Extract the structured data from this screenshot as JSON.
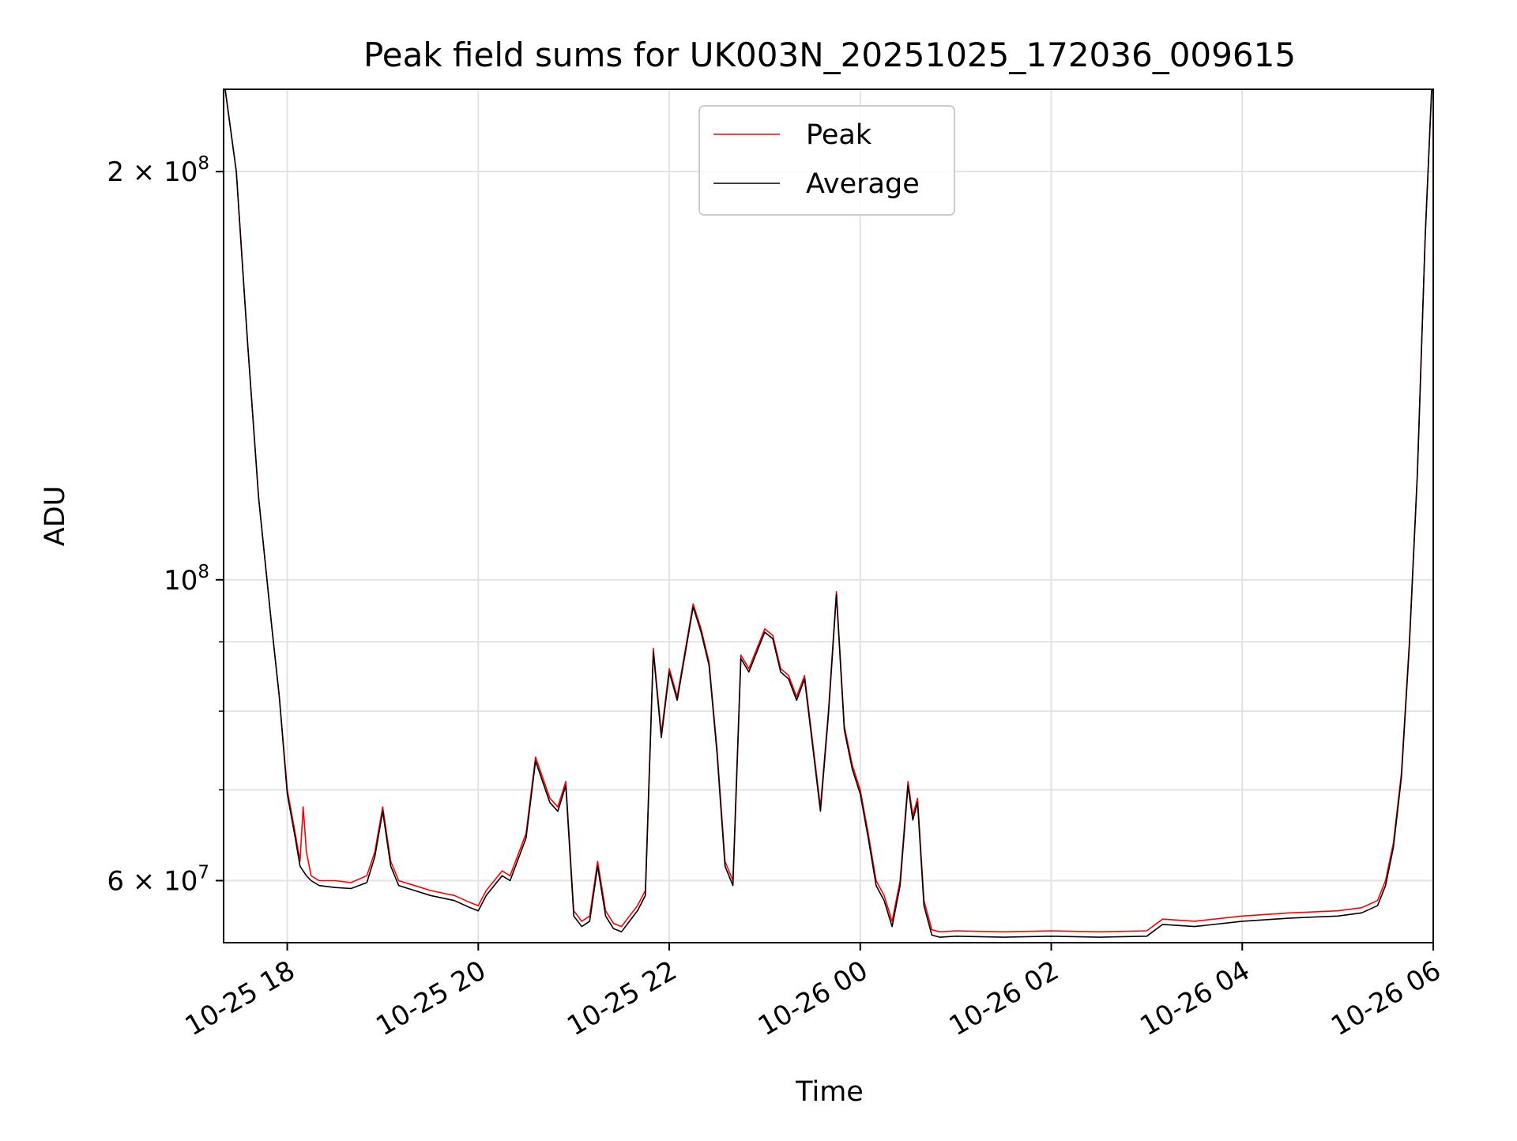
{
  "chart_data": {
    "type": "line",
    "title": "Peak field sums for UK003N_20251025_172036_009615",
    "xlabel": "Time",
    "ylabel": "ADU",
    "yscale": "log",
    "xlim": [
      "2025-10-25 17:20",
      "2025-10-26 06:00"
    ],
    "ylim": [
      54000000,
      230000000
    ],
    "x_ticks": [
      {
        "value": "2025-10-25 18:00",
        "label": "10-25 18"
      },
      {
        "value": "2025-10-25 20:00",
        "label": "10-25 20"
      },
      {
        "value": "2025-10-25 22:00",
        "label": "10-25 22"
      },
      {
        "value": "2025-10-26 00:00",
        "label": "10-26 00"
      },
      {
        "value": "2025-10-26 02:00",
        "label": "10-26 02"
      },
      {
        "value": "2025-10-26 04:00",
        "label": "10-26 04"
      },
      {
        "value": "2025-10-26 06:00",
        "label": "10-26 06"
      }
    ],
    "y_major_ticks": [
      {
        "value": 200000000,
        "base": "2 × 10",
        "exp": "8"
      },
      {
        "value": 100000000,
        "base": "10",
        "exp": "8"
      },
      {
        "value": 60000000,
        "base": "6 × 10",
        "exp": "7"
      }
    ],
    "y_minor_ticks": [
      90000000,
      80000000,
      70000000
    ],
    "grid": true,
    "legend": {
      "placement": "top-center"
    },
    "series": [
      {
        "name": "Peak",
        "color": "#ff0000",
        "x": [
          "2025-10-25 17:21",
          "2025-10-25 17:28",
          "2025-10-25 17:35",
          "2025-10-25 17:42",
          "2025-10-25 17:50",
          "2025-10-25 17:55",
          "2025-10-25 18:00",
          "2025-10-25 18:05",
          "2025-10-25 18:08",
          "2025-10-25 18:10",
          "2025-10-25 18:12",
          "2025-10-25 18:15",
          "2025-10-25 18:20",
          "2025-10-25 18:30",
          "2025-10-25 18:40",
          "2025-10-25 18:50",
          "2025-10-25 18:55",
          "2025-10-25 19:00",
          "2025-10-25 19:05",
          "2025-10-25 19:10",
          "2025-10-25 19:20",
          "2025-10-25 19:30",
          "2025-10-25 19:45",
          "2025-10-25 19:55",
          "2025-10-25 20:00",
          "2025-10-25 20:05",
          "2025-10-25 20:15",
          "2025-10-25 20:20",
          "2025-10-25 20:30",
          "2025-10-25 20:36",
          "2025-10-25 20:45",
          "2025-10-25 20:50",
          "2025-10-25 20:55",
          "2025-10-25 21:00",
          "2025-10-25 21:05",
          "2025-10-25 21:10",
          "2025-10-25 21:15",
          "2025-10-25 21:20",
          "2025-10-25 21:25",
          "2025-10-25 21:30",
          "2025-10-25 21:35",
          "2025-10-25 21:40",
          "2025-10-25 21:45",
          "2025-10-25 21:50",
          "2025-10-25 21:55",
          "2025-10-25 22:00",
          "2025-10-25 22:05",
          "2025-10-25 22:15",
          "2025-10-25 22:20",
          "2025-10-25 22:25",
          "2025-10-25 22:30",
          "2025-10-25 22:35",
          "2025-10-25 22:40",
          "2025-10-25 22:45",
          "2025-10-25 22:50",
          "2025-10-25 23:00",
          "2025-10-25 23:05",
          "2025-10-25 23:10",
          "2025-10-25 23:15",
          "2025-10-25 23:20",
          "2025-10-25 23:25",
          "2025-10-25 23:30",
          "2025-10-25 23:35",
          "2025-10-25 23:40",
          "2025-10-25 23:45",
          "2025-10-25 23:50",
          "2025-10-25 23:55",
          "2025-10-26 00:00",
          "2025-10-26 00:05",
          "2025-10-26 00:10",
          "2025-10-26 00:15",
          "2025-10-26 00:20",
          "2025-10-26 00:25",
          "2025-10-26 00:30",
          "2025-10-26 00:33",
          "2025-10-26 00:36",
          "2025-10-26 00:40",
          "2025-10-26 00:45",
          "2025-10-26 00:50",
          "2025-10-26 01:00",
          "2025-10-26 01:30",
          "2025-10-26 02:00",
          "2025-10-26 02:30",
          "2025-10-26 03:00",
          "2025-10-26 03:10",
          "2025-10-26 03:30",
          "2025-10-26 04:00",
          "2025-10-26 04:30",
          "2025-10-26 05:00",
          "2025-10-26 05:15",
          "2025-10-26 05:25",
          "2025-10-26 05:30",
          "2025-10-26 05:35",
          "2025-10-26 05:40",
          "2025-10-26 05:45",
          "2025-10-26 05:50",
          "2025-10-26 05:55",
          "2025-10-26 05:59"
        ],
        "y": [
          230000000,
          200000000,
          150000000,
          115000000,
          93000000,
          82000000,
          70000000,
          65000000,
          62000000,
          68000000,
          63000000,
          60500000,
          60000000,
          60000000,
          59800000,
          60500000,
          63000000,
          68000000,
          62000000,
          60000000,
          59500000,
          59000000,
          58500000,
          57800000,
          57500000,
          59000000,
          61000000,
          60500000,
          65000000,
          74000000,
          69000000,
          68000000,
          71000000,
          57000000,
          56000000,
          56500000,
          62000000,
          57000000,
          55800000,
          55500000,
          56500000,
          57500000,
          59000000,
          89000000,
          77000000,
          86000000,
          82000000,
          96000000,
          92000000,
          87000000,
          75000000,
          62000000,
          60000000,
          88000000,
          86000000,
          92000000,
          91000000,
          86000000,
          85000000,
          82000000,
          85000000,
          76000000,
          68000000,
          80000000,
          98000000,
          78000000,
          73000000,
          70000000,
          65000000,
          60000000,
          58500000,
          56000000,
          60000000,
          71000000,
          67000000,
          69000000,
          58000000,
          55200000,
          55000000,
          55100000,
          55000000,
          55100000,
          55000000,
          55100000,
          56200000,
          56000000,
          56500000,
          56800000,
          57000000,
          57300000,
          58000000,
          60000000,
          64000000,
          72000000,
          90000000,
          120000000,
          180000000,
          230000000
        ]
      },
      {
        "name": "Average",
        "color": "#000000",
        "x": [
          "2025-10-25 17:21",
          "2025-10-25 17:28",
          "2025-10-25 17:35",
          "2025-10-25 17:42",
          "2025-10-25 17:50",
          "2025-10-25 17:55",
          "2025-10-25 18:00",
          "2025-10-25 18:05",
          "2025-10-25 18:08",
          "2025-10-25 18:10",
          "2025-10-25 18:12",
          "2025-10-25 18:15",
          "2025-10-25 18:20",
          "2025-10-25 18:30",
          "2025-10-25 18:40",
          "2025-10-25 18:50",
          "2025-10-25 18:55",
          "2025-10-25 19:00",
          "2025-10-25 19:05",
          "2025-10-25 19:10",
          "2025-10-25 19:20",
          "2025-10-25 19:30",
          "2025-10-25 19:45",
          "2025-10-25 19:55",
          "2025-10-25 20:00",
          "2025-10-25 20:05",
          "2025-10-25 20:15",
          "2025-10-25 20:20",
          "2025-10-25 20:30",
          "2025-10-25 20:36",
          "2025-10-25 20:45",
          "2025-10-25 20:50",
          "2025-10-25 20:55",
          "2025-10-25 21:00",
          "2025-10-25 21:05",
          "2025-10-25 21:10",
          "2025-10-25 21:15",
          "2025-10-25 21:20",
          "2025-10-25 21:25",
          "2025-10-25 21:30",
          "2025-10-25 21:35",
          "2025-10-25 21:40",
          "2025-10-25 21:45",
          "2025-10-25 21:50",
          "2025-10-25 21:55",
          "2025-10-25 22:00",
          "2025-10-25 22:05",
          "2025-10-25 22:15",
          "2025-10-25 22:20",
          "2025-10-25 22:25",
          "2025-10-25 22:30",
          "2025-10-25 22:35",
          "2025-10-25 22:40",
          "2025-10-25 22:45",
          "2025-10-25 22:50",
          "2025-10-25 23:00",
          "2025-10-25 23:05",
          "2025-10-25 23:10",
          "2025-10-25 23:15",
          "2025-10-25 23:20",
          "2025-10-25 23:25",
          "2025-10-25 23:30",
          "2025-10-25 23:35",
          "2025-10-25 23:40",
          "2025-10-25 23:45",
          "2025-10-25 23:50",
          "2025-10-25 23:55",
          "2025-10-26 00:00",
          "2025-10-26 00:05",
          "2025-10-26 00:10",
          "2025-10-26 00:15",
          "2025-10-26 00:20",
          "2025-10-26 00:25",
          "2025-10-26 00:30",
          "2025-10-26 00:33",
          "2025-10-26 00:36",
          "2025-10-26 00:40",
          "2025-10-26 00:45",
          "2025-10-26 00:50",
          "2025-10-26 01:00",
          "2025-10-26 01:30",
          "2025-10-26 02:00",
          "2025-10-26 02:30",
          "2025-10-26 03:00",
          "2025-10-26 03:10",
          "2025-10-26 03:30",
          "2025-10-26 04:00",
          "2025-10-26 04:30",
          "2025-10-26 05:00",
          "2025-10-26 05:15",
          "2025-10-26 05:25",
          "2025-10-26 05:30",
          "2025-10-26 05:35",
          "2025-10-26 05:40",
          "2025-10-26 05:45",
          "2025-10-26 05:50",
          "2025-10-26 05:55",
          "2025-10-26 05:59"
        ],
        "y": [
          230000000,
          200000000,
          150000000,
          115000000,
          93000000,
          82000000,
          69500000,
          64500000,
          61500000,
          61000000,
          60500000,
          60000000,
          59500000,
          59300000,
          59200000,
          59800000,
          62500000,
          67500000,
          61500000,
          59500000,
          59000000,
          58500000,
          58000000,
          57300000,
          57000000,
          58500000,
          60500000,
          60000000,
          64500000,
          73500000,
          68500000,
          67500000,
          70500000,
          56500000,
          55500000,
          56000000,
          61500000,
          56500000,
          55300000,
          55000000,
          56000000,
          57000000,
          58500000,
          88500000,
          76500000,
          85500000,
          81500000,
          95500000,
          91500000,
          86500000,
          74500000,
          61500000,
          59500000,
          87500000,
          85500000,
          91500000,
          90500000,
          85500000,
          84500000,
          81500000,
          84500000,
          75500000,
          67500000,
          79500000,
          97500000,
          77500000,
          72500000,
          69500000,
          64500000,
          59500000,
          58000000,
          55500000,
          59500000,
          70500000,
          66500000,
          68500000,
          57500000,
          54700000,
          54500000,
          54600000,
          54500000,
          54600000,
          54500000,
          54600000,
          55700000,
          55500000,
          56000000,
          56300000,
          56500000,
          56800000,
          57500000,
          59500000,
          63500000,
          71500000,
          89500000,
          119500000,
          179500000,
          230000000
        ]
      }
    ]
  }
}
